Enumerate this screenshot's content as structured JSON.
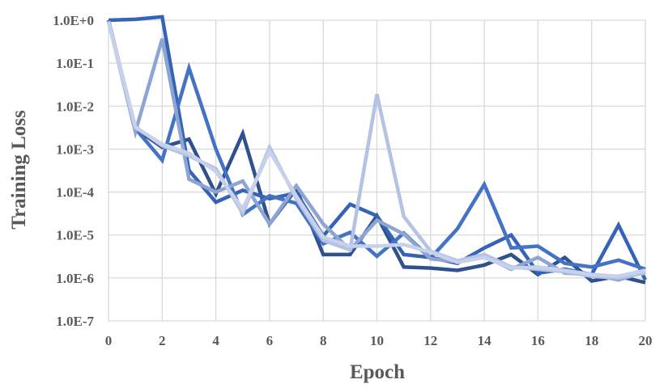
{
  "chart_data": {
    "type": "line",
    "title": "",
    "xlabel": "Epoch",
    "ylabel": "Training Loss",
    "x": [
      0,
      1,
      2,
      3,
      4,
      5,
      6,
      7,
      8,
      9,
      10,
      11,
      12,
      13,
      14,
      15,
      16,
      17,
      18,
      19,
      20
    ],
    "xlim": [
      0,
      20
    ],
    "xticks": [
      0,
      2,
      4,
      6,
      8,
      10,
      12,
      14,
      16,
      18,
      20
    ],
    "yscale": "log",
    "ylim": [
      1e-07,
      1
    ],
    "yticks": [
      {
        "value": 1,
        "label": "1.0E+0"
      },
      {
        "value": 0.1,
        "label": "1.0E-1"
      },
      {
        "value": 0.01,
        "label": "1.0E-2"
      },
      {
        "value": 0.001,
        "label": "1.0E-3"
      },
      {
        "value": 0.0001,
        "label": "1.0E-4"
      },
      {
        "value": 1e-05,
        "label": "1.0E-5"
      },
      {
        "value": 1e-06,
        "label": "1.0E-6"
      },
      {
        "value": 1e-07,
        "label": "1.0E-7"
      }
    ],
    "grid": true,
    "legend": "none",
    "series": [
      {
        "color": "#2f528f",
        "values": [
          1.0,
          0.003,
          0.0011,
          0.0017,
          9e-05,
          0.0023,
          1.8e-05,
          0.00012,
          3.5e-06,
          3.5e-06,
          2.8e-05,
          1.8e-06,
          1.7e-06,
          1.5e-06,
          2e-06,
          3.5e-06,
          1.2e-06,
          3e-06,
          8.5e-07,
          1.1e-06,
          7.8e-07
        ]
      },
      {
        "color": "#3563b5",
        "values": [
          1.0,
          1.05,
          1.2,
          0.00032,
          5.8e-05,
          0.00011,
          7e-05,
          9.5e-05,
          9.5e-06,
          5.2e-05,
          2.8e-05,
          3.5e-06,
          3e-06,
          2.2e-06,
          5e-06,
          1e-05,
          1.3e-06,
          1.6e-06,
          1.2e-06,
          1.7e-05,
          9e-07
        ]
      },
      {
        "color": "#4472c4",
        "values": [
          0.95,
          0.003,
          0.00055,
          0.077,
          0.001,
          3e-05,
          8.2e-05,
          5.5e-05,
          6.3e-06,
          1.15e-05,
          3.2e-06,
          1.1e-05,
          2.9e-06,
          1.4e-05,
          0.00015,
          5e-06,
          5.5e-06,
          2.2e-06,
          1.8e-06,
          2.6e-06,
          1.6e-06
        ]
      },
      {
        "color": "#8ea5d3",
        "values": [
          0.95,
          0.0025,
          0.37,
          0.0002,
          0.0001,
          0.00018,
          1.8e-05,
          0.00014,
          1.8e-05,
          4.5e-06,
          2.2e-05,
          1.05e-05,
          2.8e-06,
          2.4e-06,
          3.2e-06,
          1.6e-06,
          3e-06,
          1.3e-06,
          1.2e-06,
          9e-07,
          1.4e-06
        ]
      },
      {
        "color": "#b4c2e4",
        "values": [
          0.95,
          0.0033,
          0.0012,
          0.0007,
          0.00035,
          3.2e-05,
          0.0011,
          7e-05,
          7.5e-06,
          4.5e-06,
          0.019,
          2.7e-05,
          4.2e-06,
          2.5e-06,
          3.5e-06,
          1.8e-06,
          1.6e-06,
          1.4e-06,
          1.1e-06,
          1e-06,
          1.3e-06
        ]
      },
      {
        "color": "#c7d1ec",
        "values": [
          0.9,
          0.0032,
          0.0013,
          0.0008,
          0.0003,
          4e-05,
          0.0009,
          8e-05,
          9e-06,
          5.5e-06,
          5.5e-06,
          6e-06,
          4e-06,
          2.3e-06,
          3e-06,
          1.7e-06,
          1.8e-06,
          1.5e-06,
          1.2e-06,
          1.1e-06,
          1.5e-06
        ]
      }
    ]
  }
}
